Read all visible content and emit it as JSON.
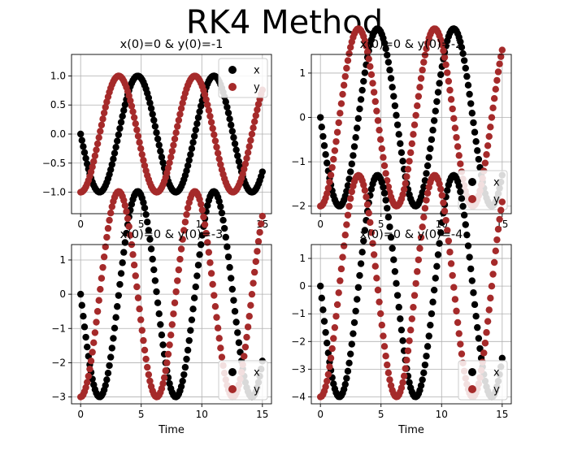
{
  "figure": {
    "suptitle": "RK4 Method"
  },
  "colors": {
    "x_series": "#000000",
    "y_series": "#a52a2a",
    "grid": "#b0b0b0",
    "axes": "#000000"
  },
  "chart_data": [
    {
      "type": "scatter",
      "title": "x(0)=0 & y(0)=-1",
      "xlabel": "",
      "ylabel": "",
      "x_range": [
        0,
        15
      ],
      "xlim": [
        -0.75,
        15.75
      ],
      "ylim": [
        -1.37,
        1.37
      ],
      "xticks": [
        0,
        5,
        10,
        15
      ],
      "yticks": [
        -1.0,
        -0.5,
        0.0,
        0.5,
        1.0
      ],
      "ytick_labels": [
        "−1.0",
        "−0.5",
        "0.0",
        "0.5",
        "1.0"
      ],
      "grid": true,
      "legend": {
        "placement": "upper right",
        "entries": [
          "x",
          "y"
        ]
      },
      "x0": 0,
      "y0": -1,
      "series": [
        {
          "name": "x",
          "color": "#000000"
        },
        {
          "name": "y",
          "color": "#a52a2a"
        }
      ]
    },
    {
      "type": "scatter",
      "title": "x(0)=0 & y(0)=-2",
      "xlabel": "",
      "ylabel": "",
      "x_range": [
        0,
        15
      ],
      "xlim": [
        -0.75,
        15.75
      ],
      "ylim": [
        -2.17,
        1.42
      ],
      "xticks": [
        0,
        5,
        10,
        15
      ],
      "yticks": [
        -2,
        -1,
        0,
        1
      ],
      "ytick_labels": [
        "−2",
        "−1",
        "0",
        "1"
      ],
      "grid": true,
      "legend": {
        "placement": "lower right",
        "entries": [
          "x",
          "y"
        ]
      },
      "x0": 0,
      "y0": -2,
      "series": [
        {
          "name": "x",
          "color": "#000000"
        },
        {
          "name": "y",
          "color": "#a52a2a"
        }
      ]
    },
    {
      "type": "scatter",
      "title": "x(0)=0 & y(0)=-3",
      "xlabel": "Time",
      "ylabel": "",
      "x_range": [
        0,
        15
      ],
      "xlim": [
        -0.75,
        15.75
      ],
      "ylim": [
        -3.2,
        1.45
      ],
      "xticks": [
        0,
        5,
        10,
        15
      ],
      "yticks": [
        -3,
        -2,
        -1,
        0,
        1
      ],
      "ytick_labels": [
        "−3",
        "−2",
        "−1",
        "0",
        "1"
      ],
      "grid": true,
      "legend": {
        "placement": "lower right",
        "entries": [
          "x",
          "y"
        ]
      },
      "x0": 0,
      "y0": -3,
      "series": [
        {
          "name": "x",
          "color": "#000000"
        },
        {
          "name": "y",
          "color": "#a52a2a"
        }
      ]
    },
    {
      "type": "scatter",
      "title": "x(0)=0 & y(0)=-4",
      "xlabel": "Time",
      "ylabel": "",
      "x_range": [
        0,
        15
      ],
      "xlim": [
        -0.75,
        15.75
      ],
      "ylim": [
        -4.25,
        1.5
      ],
      "xticks": [
        0,
        5,
        10,
        15
      ],
      "yticks": [
        -4,
        -3,
        -2,
        -1,
        0,
        1
      ],
      "ytick_labels": [
        "−4",
        "−3",
        "−2",
        "−1",
        "0",
        "1"
      ],
      "grid": true,
      "legend": {
        "placement": "lower right",
        "entries": [
          "x",
          "y"
        ]
      },
      "x0": 0,
      "y0": -4,
      "series": [
        {
          "name": "x",
          "color": "#000000"
        },
        {
          "name": "y",
          "color": "#a52a2a"
        }
      ]
    }
  ]
}
